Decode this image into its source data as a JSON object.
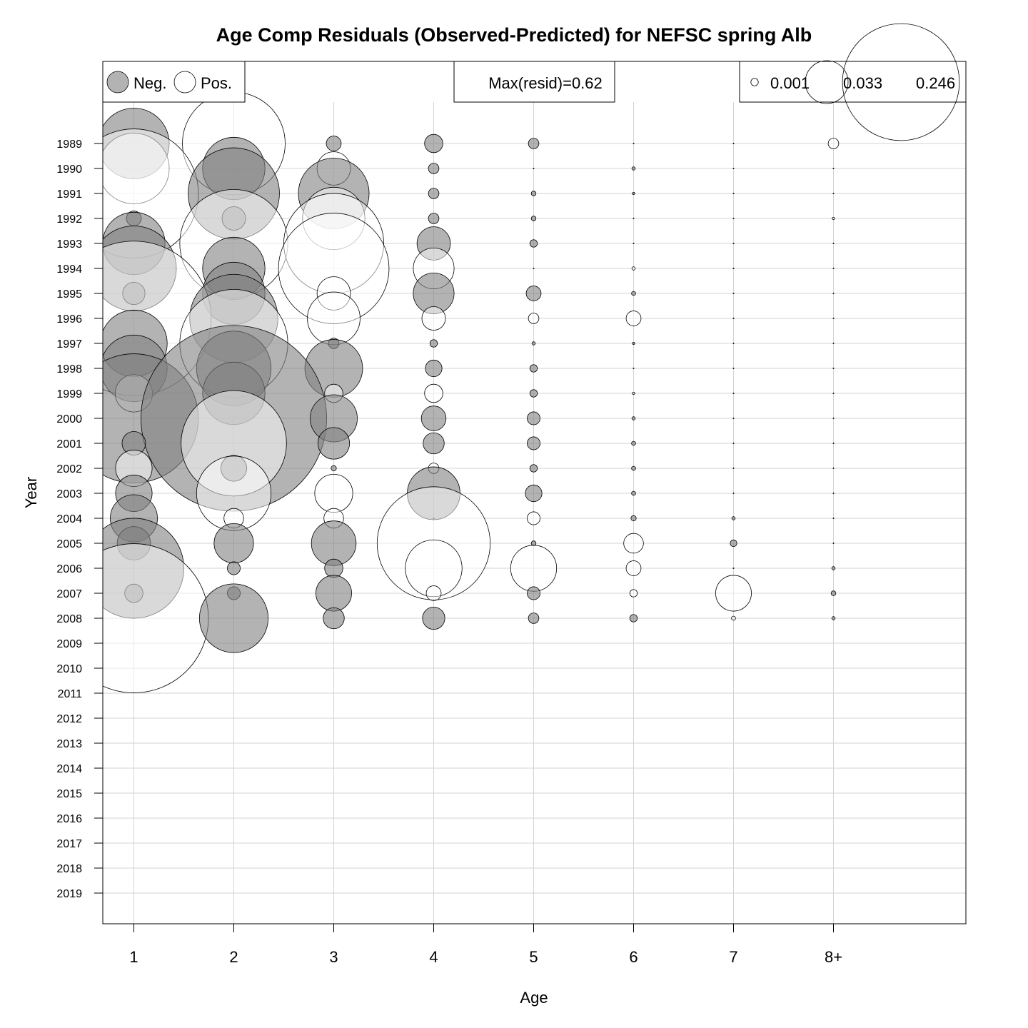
{
  "chart_data": {
    "type": "scatter",
    "subtype": "bubble",
    "title": "Age Comp Residuals (Observed-Predicted) for NEFSC spring Alb",
    "xlabel": "Age",
    "ylabel": "Year",
    "x_categories": [
      "1",
      "2",
      "3",
      "4",
      "5",
      "6",
      "7",
      "8+"
    ],
    "years": [
      "1989",
      "1990",
      "1991",
      "1992",
      "1993",
      "1994",
      "1995",
      "1996",
      "1997",
      "1998",
      "1999",
      "2000",
      "2001",
      "2002",
      "2003",
      "2004",
      "2005",
      "2006",
      "2007",
      "2008",
      "2009",
      "2010",
      "2011",
      "2012",
      "2013",
      "2014",
      "2015",
      "2016",
      "2017",
      "2018",
      "2019"
    ],
    "grid": true,
    "legend_sign": {
      "neg_label": "Neg.",
      "pos_label": "Pos.",
      "placement": "top-left"
    },
    "max_resid_label": "Max(resid)=0.62",
    "max_resid": 0.62,
    "legend_sizes": [
      {
        "label": "0.001",
        "value": 0.001
      },
      {
        "label": "0.033",
        "value": 0.033
      },
      {
        "label": "0.246",
        "value": 0.246
      }
    ],
    "colors": {
      "negative_fill": "#808080",
      "positive_fill": "#ffffff",
      "stroke": "#000000",
      "grid": "#d3d3d3"
    },
    "residuals": [
      {
        "year": "1989",
        "values": [
          -0.09,
          0.19,
          -0.004,
          -0.006,
          -0.002,
          0.0,
          0.0,
          0.002
        ]
      },
      {
        "year": "1990",
        "values": [
          0.09,
          -0.07,
          0.02,
          -0.002,
          0.0,
          -0.0002,
          0.0,
          0.0
        ]
      },
      {
        "year": "1991",
        "values": [
          0.3,
          -0.15,
          -0.09,
          -0.002,
          -0.0004,
          -0.0001,
          0.0,
          0.0
        ]
      },
      {
        "year": "1992",
        "values": [
          -0.004,
          -0.01,
          0.07,
          -0.002,
          -0.0004,
          0.0,
          0.0,
          0.0001
        ]
      },
      {
        "year": "1993",
        "values": [
          -0.07,
          0.21,
          0.18,
          -0.02,
          -0.001,
          0.0,
          0.0,
          0.0
        ]
      },
      {
        "year": "1994",
        "values": [
          -0.13,
          -0.07,
          0.22,
          0.03,
          0.0,
          0.0002,
          0.0,
          0.0
        ]
      },
      {
        "year": "1995",
        "values": [
          -0.009,
          -0.07,
          0.02,
          -0.03,
          -0.004,
          -0.0003,
          0.0,
          0.0
        ]
      },
      {
        "year": "1996",
        "values": [
          0.43,
          -0.14,
          0.05,
          0.01,
          0.002,
          0.004,
          0.0,
          0.0
        ]
      },
      {
        "year": "1997",
        "values": [
          -0.08,
          0.21,
          -0.002,
          -0.001,
          -0.0002,
          -0.0001,
          0.0,
          0.0
        ]
      },
      {
        "year": "1998",
        "values": [
          -0.08,
          -0.1,
          -0.06,
          -0.005,
          -0.001,
          0.0,
          0.0,
          0.0
        ]
      },
      {
        "year": "1999",
        "values": [
          0.025,
          -0.07,
          0.006,
          0.006,
          -0.001,
          0.0001,
          0.0,
          0.0
        ]
      },
      {
        "year": "2000",
        "values": [
          -0.3,
          -0.62,
          -0.04,
          -0.011,
          -0.003,
          -0.0002,
          0.0,
          0.0
        ]
      },
      {
        "year": "2001",
        "values": [
          -0.01,
          0.2,
          -0.018,
          -0.008,
          -0.003,
          -0.0003,
          0.0,
          0.0
        ]
      },
      {
        "year": "2002",
        "values": [
          0.024,
          -0.012,
          -0.0005,
          0.002,
          -0.001,
          -0.0003,
          0.0,
          0.0
        ]
      },
      {
        "year": "2003",
        "values": [
          -0.024,
          0.1,
          0.026,
          -0.05,
          -0.005,
          -0.0003,
          0.0,
          0.0
        ]
      },
      {
        "year": "2004",
        "values": [
          -0.04,
          0.007,
          0.007,
          0.0,
          0.003,
          -0.0005,
          -0.0002,
          0.0
        ]
      },
      {
        "year": "2005",
        "values": [
          -0.02,
          -0.028,
          -0.036,
          0.23,
          -0.0004,
          0.007,
          -0.0008,
          0.0
        ]
      },
      {
        "year": "2006",
        "values": [
          -0.18,
          -0.003,
          -0.006,
          0.058,
          0.038,
          0.004,
          0.0,
          -0.0002
        ]
      },
      {
        "year": "2007",
        "values": [
          -0.006,
          -0.003,
          -0.023,
          0.004,
          -0.003,
          0.001,
          0.023,
          -0.0004
        ]
      },
      {
        "year": "2008",
        "values": [
          0.4,
          -0.085,
          -0.008,
          -0.009,
          -0.002,
          -0.001,
          0.0003,
          -0.0002
        ]
      }
    ]
  }
}
